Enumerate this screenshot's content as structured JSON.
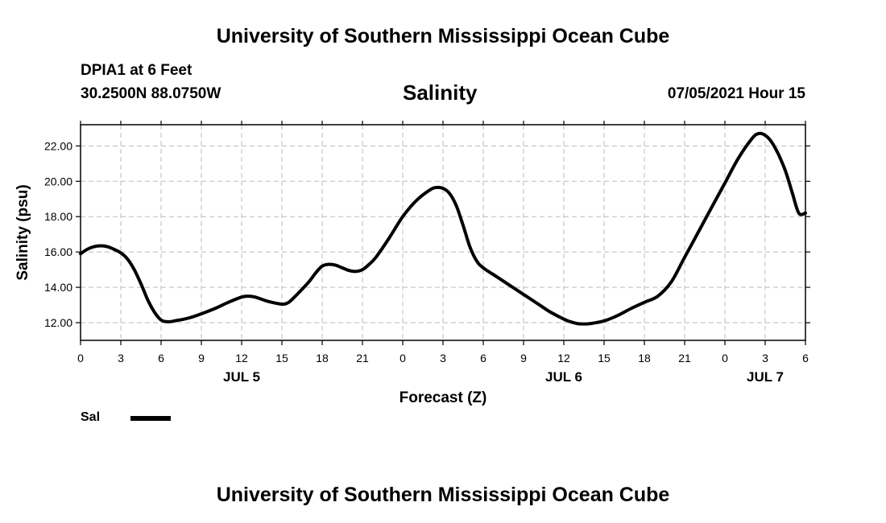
{
  "header": {
    "title_top": "University of Southern Mississippi Ocean Cube",
    "title_bottom": "University of Southern Mississippi Ocean Cube",
    "station": "DPIA1 at 6 Feet",
    "coords": "30.2500N  88.0750W",
    "timestamp": "07/05/2021 Hour 15"
  },
  "legend": {
    "label": "Sal",
    "color": "#000000"
  },
  "chart_data": {
    "type": "line",
    "title": "Salinity",
    "xlabel": "Forecast (Z)",
    "ylabel": "Salinity (psu)",
    "xlim": [
      0,
      54
    ],
    "ylim": [
      11,
      23.2
    ],
    "grid": true,
    "x_ticks": [
      0,
      3,
      6,
      9,
      12,
      15,
      18,
      21,
      24,
      27,
      30,
      33,
      36,
      39,
      42,
      45,
      48,
      51,
      54
    ],
    "x_tick_labels": [
      "0",
      "3",
      "6",
      "9",
      "12",
      "15",
      "18",
      "21",
      "0",
      "3",
      "6",
      "9",
      "12",
      "15",
      "18",
      "21",
      "0",
      "3",
      "6"
    ],
    "y_ticks": [
      12,
      14,
      16,
      18,
      20,
      22
    ],
    "y_tick_labels": [
      "12.00",
      "14.00",
      "16.00",
      "18.00",
      "20.00",
      "22.00"
    ],
    "day_labels": [
      {
        "x": 12,
        "label": "JUL 5"
      },
      {
        "x": 36,
        "label": "JUL 6"
      },
      {
        "x": 51,
        "label": "JUL 7"
      }
    ],
    "series": [
      {
        "name": "Sal",
        "color": "#000000",
        "x": [
          0,
          0.5,
          1,
          1.5,
          2,
          2.5,
          3,
          3.5,
          4,
          4.5,
          5,
          5.5,
          6,
          6.5,
          7,
          8,
          9,
          10,
          11,
          12,
          12.5,
          13,
          14,
          15,
          15.5,
          16,
          17,
          17.5,
          18,
          18.5,
          19,
          19.5,
          20,
          20.5,
          21,
          21.5,
          22,
          23,
          24,
          25,
          26,
          26.5,
          27,
          27.5,
          28,
          28.5,
          29,
          29.5,
          30,
          31,
          32,
          33,
          34,
          35,
          36,
          36.5,
          37,
          37.5,
          38,
          39,
          40,
          41,
          42,
          43,
          44,
          45,
          46,
          47,
          48,
          49,
          50,
          50.5,
          51,
          51.5,
          52,
          52.5,
          53,
          53.5,
          54
        ],
        "values": [
          15.9,
          16.15,
          16.3,
          16.35,
          16.3,
          16.15,
          15.95,
          15.6,
          15.0,
          14.2,
          13.3,
          12.6,
          12.15,
          12.05,
          12.1,
          12.25,
          12.5,
          12.8,
          13.15,
          13.45,
          13.5,
          13.45,
          13.2,
          13.05,
          13.15,
          13.5,
          14.3,
          14.8,
          15.2,
          15.3,
          15.25,
          15.1,
          14.95,
          14.9,
          15.0,
          15.3,
          15.7,
          16.8,
          18.0,
          18.9,
          19.5,
          19.65,
          19.6,
          19.3,
          18.6,
          17.5,
          16.3,
          15.5,
          15.1,
          14.6,
          14.1,
          13.6,
          13.1,
          12.6,
          12.2,
          12.05,
          11.95,
          11.93,
          11.95,
          12.1,
          12.4,
          12.8,
          13.15,
          13.5,
          14.3,
          15.7,
          17.1,
          18.5,
          19.9,
          21.3,
          22.4,
          22.7,
          22.6,
          22.2,
          21.5,
          20.6,
          19.4,
          18.2,
          18.2
        ]
      }
    ]
  }
}
